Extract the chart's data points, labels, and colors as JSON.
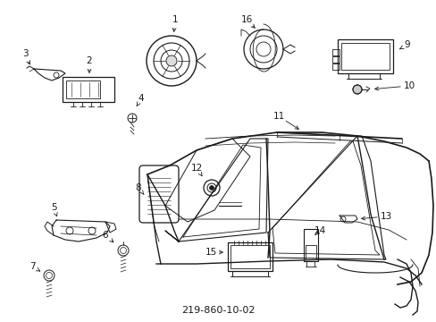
{
  "title": "219-860-10-02",
  "background_color": "#ffffff",
  "line_color": "#1a1a1a",
  "fig_width": 4.89,
  "fig_height": 3.6,
  "dpi": 100,
  "label_fontsize": 7.5,
  "title_fontsize": 8
}
